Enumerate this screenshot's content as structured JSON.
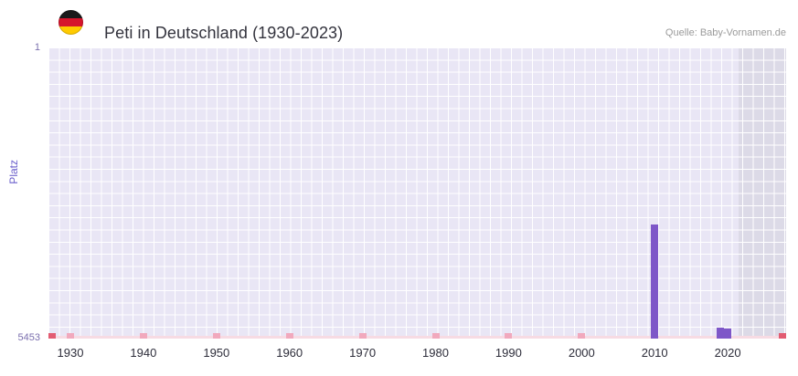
{
  "header": {
    "title": "Peti in Deutschland (1930-2023)",
    "source": "Quelle: Baby-Vornamen.de",
    "flag": "german-flag-icon"
  },
  "chart_data": {
    "type": "bar",
    "title": "Peti in Deutschland (1930-2023)",
    "xlabel": "",
    "ylabel": "Platz",
    "x_range": [
      1927,
      2028
    ],
    "x_ticks": [
      1930,
      1940,
      1950,
      1960,
      1970,
      1980,
      1990,
      2000,
      2010,
      2020
    ],
    "y_axis": {
      "top_label": "1",
      "bottom_label": "5453",
      "min": 1,
      "max": 5453,
      "inverted": true
    },
    "series": [
      {
        "name": "Platz",
        "points": [
          {
            "year": 2010,
            "rank": 3310
          },
          {
            "year": 2019,
            "rank": 5240
          },
          {
            "year": 2020,
            "rank": 5270
          }
        ]
      }
    ],
    "baseline_markers": {
      "years": [
        1930,
        1940,
        1950,
        1960,
        1970,
        1980,
        1990,
        2000,
        2010,
        2020
      ],
      "color": "#f1a9bd",
      "edge_color": "#e25c72"
    },
    "shaded_region": {
      "from_year": 2021.5,
      "to": "end",
      "color": "#dcdae7"
    },
    "colors": {
      "bar": "#7e57c8",
      "plot_bg": "#e9e6f5",
      "grid": "#ffffff"
    },
    "legend": "none",
    "grid": "on"
  }
}
